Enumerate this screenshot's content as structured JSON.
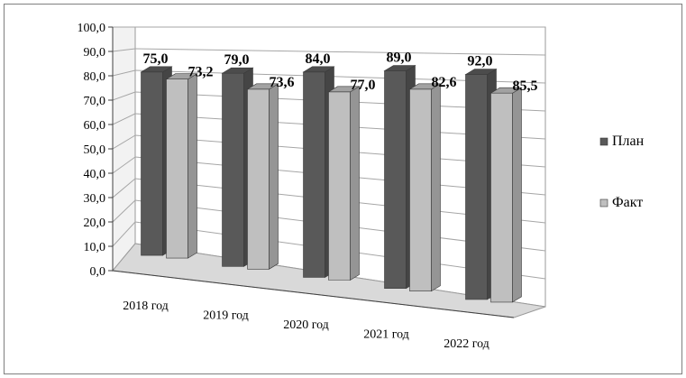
{
  "chart_data": {
    "type": "bar",
    "categories": [
      "2018 год",
      "2019 год",
      "2020 год",
      "2021 год",
      "2022 год"
    ],
    "series": [
      {
        "name": "План",
        "values": [
          75.0,
          79.0,
          84.0,
          89.0,
          92.0
        ],
        "color": "#595959"
      },
      {
        "name": "Факт",
        "values": [
          73.2,
          73.6,
          77.0,
          82.6,
          85.5
        ],
        "color": "#bfbfbf"
      }
    ],
    "value_labels": [
      [
        "75,0",
        "79,0",
        "84,0",
        "89,0",
        "92,0"
      ],
      [
        "73,2",
        "73,6",
        "77,0",
        "82,6",
        "85,5"
      ]
    ],
    "y_ticks": [
      "0,0",
      "10,0",
      "20,0",
      "30,0",
      "40,0",
      "50,0",
      "60,0",
      "70,0",
      "80,0",
      "90,0",
      "100,0"
    ],
    "ylim": [
      0,
      100
    ],
    "grid": true,
    "legend_position": "right",
    "style": "3d-clustered-column"
  }
}
